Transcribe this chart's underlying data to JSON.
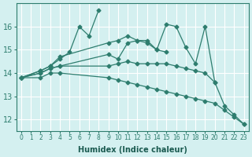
{
  "xlabel": "Humidex (Indice chaleur)",
  "background_color": "#d4f0f0",
  "grid_color": "#ffffff",
  "line_color": "#2e7d6e",
  "xlim": [
    -0.5,
    23.5
  ],
  "ylim": [
    11.5,
    17.0
  ],
  "xticks": [
    0,
    1,
    2,
    3,
    4,
    5,
    6,
    7,
    8,
    9,
    10,
    11,
    12,
    13,
    14,
    15,
    16,
    17,
    18,
    19,
    20,
    21,
    22,
    23
  ],
  "yticks": [
    12,
    13,
    14,
    15,
    16
  ],
  "lines": [
    {
      "x": [
        0,
        2,
        3,
        4,
        5,
        6,
        7,
        8
      ],
      "y": [
        13.8,
        14.1,
        14.3,
        14.6,
        14.9,
        16.0,
        15.6,
        16.7
      ]
    },
    {
      "x": [
        0,
        2,
        3,
        4,
        9,
        10,
        11,
        12,
        13,
        14,
        15,
        16,
        17,
        18,
        19,
        20,
        21,
        22,
        23
      ],
      "y": [
        13.8,
        14.1,
        14.3,
        14.7,
        15.3,
        15.4,
        15.6,
        15.4,
        15.3,
        15.0,
        16.1,
        16.0,
        15.1,
        14.4,
        16.0,
        13.6,
        12.6,
        12.2,
        11.8
      ]
    },
    {
      "x": [
        0,
        2,
        3,
        4,
        9,
        10,
        11,
        12,
        13,
        14,
        15
      ],
      "y": [
        13.8,
        14.0,
        14.2,
        14.3,
        14.8,
        14.6,
        15.3,
        15.4,
        15.4,
        15.0,
        14.9
      ]
    },
    {
      "x": [
        0,
        2,
        3,
        4,
        9,
        10,
        11,
        12,
        13,
        14,
        15,
        16,
        17,
        18,
        19,
        20
      ],
      "y": [
        13.8,
        14.0,
        14.2,
        14.3,
        14.3,
        14.4,
        14.5,
        14.4,
        14.4,
        14.4,
        14.4,
        14.3,
        14.2,
        14.1,
        14.0,
        13.6
      ]
    },
    {
      "x": [
        0,
        2,
        3,
        4,
        9,
        10,
        11,
        12,
        13,
        14,
        15,
        16,
        17,
        18,
        19,
        20,
        21,
        22,
        23
      ],
      "y": [
        13.8,
        13.8,
        14.0,
        14.0,
        13.8,
        13.7,
        13.6,
        13.5,
        13.4,
        13.3,
        13.2,
        13.1,
        13.0,
        12.9,
        12.8,
        12.7,
        12.4,
        12.1,
        11.8
      ]
    }
  ]
}
